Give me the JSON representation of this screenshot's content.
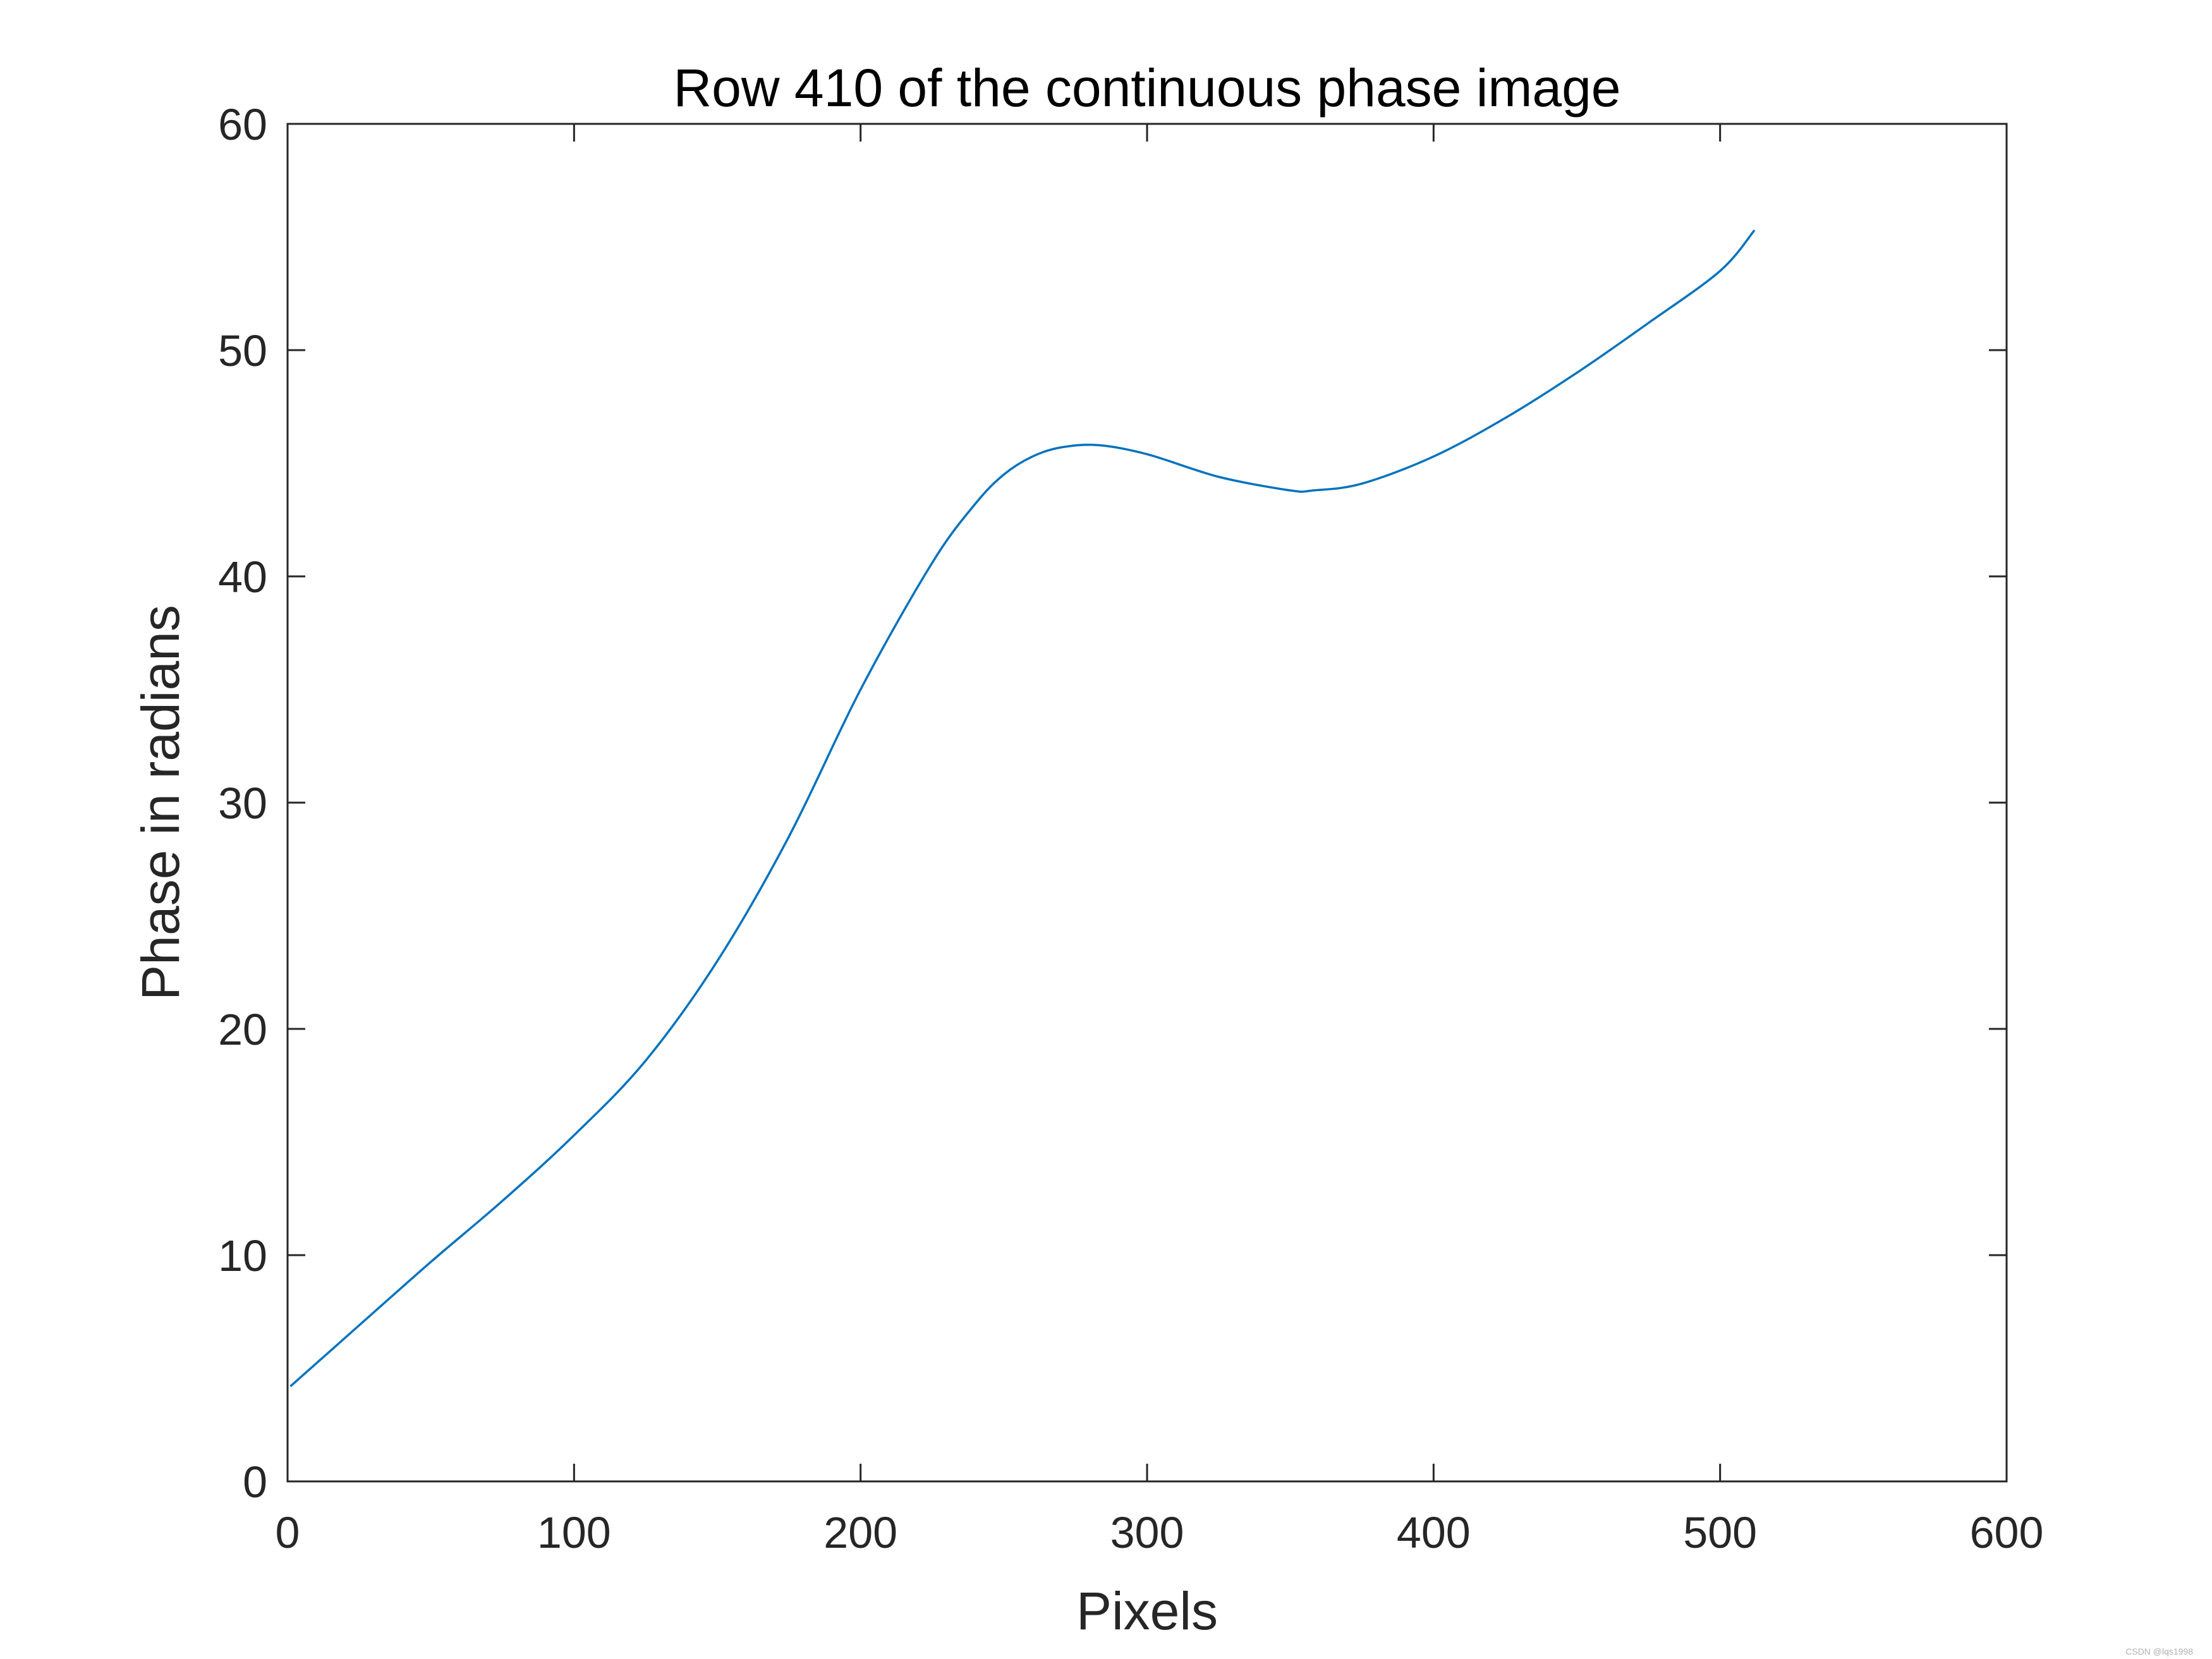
{
  "chart_data": {
    "type": "line",
    "title": "Row 410 of the continuous phase image",
    "xlabel": "Pixels",
    "ylabel": "Phase in radians",
    "xlim": [
      0,
      600
    ],
    "ylim": [
      0,
      60
    ],
    "xticks": [
      0,
      100,
      200,
      300,
      400,
      500,
      600
    ],
    "yticks": [
      0,
      10,
      20,
      30,
      40,
      50,
      60
    ],
    "grid": false,
    "line_color": "#0072BD",
    "axis_color": "#262626",
    "series": [
      {
        "x": [
          1,
          25,
          50,
          75,
          100,
          125,
          150,
          175,
          200,
          225,
          240,
          250,
          260,
          270,
          283,
          300,
          325,
          350,
          358,
          375,
          400,
          425,
          450,
          475,
          500,
          512
        ],
        "y": [
          4.2,
          6.9,
          9.7,
          12.4,
          15.3,
          18.6,
          23.0,
          28.5,
          35.0,
          40.6,
          43.2,
          44.5,
          45.3,
          45.7,
          45.8,
          45.4,
          44.4,
          43.8,
          43.8,
          44.1,
          45.3,
          47.0,
          49.0,
          51.2,
          53.5,
          55.3
        ]
      }
    ]
  },
  "watermark": "CSDN @lqs1998"
}
